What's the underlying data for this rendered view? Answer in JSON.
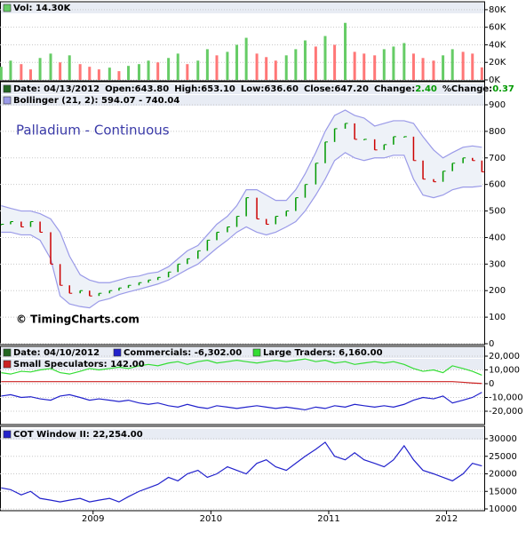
{
  "chart_data": [
    {
      "type": "bar",
      "title": "Vol: 14.30K",
      "title_color": "#66cc66",
      "x": [
        2008.22,
        2008.3,
        2008.39,
        2008.47,
        2008.55,
        2008.64,
        2008.72,
        2008.8,
        2008.89,
        2008.97,
        2009.05,
        2009.14,
        2009.22,
        2009.3,
        2009.39,
        2009.47,
        2009.55,
        2009.64,
        2009.72,
        2009.8,
        2009.89,
        2009.97,
        2010.05,
        2010.14,
        2010.22,
        2010.3,
        2010.39,
        2010.47,
        2010.55,
        2010.64,
        2010.72,
        2010.8,
        2010.89,
        2010.97,
        2011.05,
        2011.14,
        2011.22,
        2011.3,
        2011.39,
        2011.47,
        2011.55,
        2011.64,
        2011.72,
        2011.8,
        2011.89,
        2011.97,
        2012.05,
        2012.14,
        2012.22,
        2012.3
      ],
      "values": [
        15,
        22,
        18,
        12,
        25,
        30,
        20,
        28,
        18,
        15,
        12,
        14,
        10,
        16,
        18,
        22,
        20,
        25,
        30,
        18,
        22,
        35,
        28,
        32,
        40,
        48,
        30,
        26,
        22,
        28,
        35,
        45,
        38,
        50,
        40,
        65,
        32,
        30,
        28,
        35,
        38,
        42,
        30,
        25,
        22,
        28,
        35,
        32,
        30,
        14.3
      ],
      "color_up": "#66cc66",
      "color_down": "#ff7777",
      "xlim": [
        2008.21,
        2012.32
      ],
      "ylim": [
        0,
        88
      ],
      "yticks": [
        {
          "value": 0,
          "label": "0K"
        },
        {
          "value": 20,
          "label": "20K"
        },
        {
          "value": 40,
          "label": "40K"
        },
        {
          "value": 60,
          "label": "60K"
        },
        {
          "value": 80,
          "label": "80K"
        }
      ],
      "grid": true
    },
    {
      "type": "ohlc",
      "info": [
        {
          "label": "Date: ",
          "value": "04/13/2012"
        },
        {
          "label": "Open:",
          "value": "643.80"
        },
        {
          "label": "High:",
          "value": "653.10"
        },
        {
          "label": "Low:",
          "value": "636.60"
        },
        {
          "label": "Close:",
          "value": "647.20"
        },
        {
          "label": "Change:",
          "value": "2.40",
          "color": "#009900"
        },
        {
          "label": "%Change:",
          "value": "0.37",
          "color": "#009900"
        }
      ],
      "info_color": "#226622",
      "band_label": "Bollinger (21, 2): 594.07 - 740.04",
      "band_color": "#9a9ae8",
      "band_fill": "#eef2f8",
      "title": "Palladium - Continuous",
      "annotation": "© TimingCharts.com",
      "x": [
        2008.22,
        2008.3,
        2008.39,
        2008.47,
        2008.55,
        2008.64,
        2008.72,
        2008.8,
        2008.89,
        2008.97,
        2009.05,
        2009.14,
        2009.22,
        2009.3,
        2009.39,
        2009.47,
        2009.55,
        2009.64,
        2009.72,
        2009.8,
        2009.89,
        2009.97,
        2010.05,
        2010.14,
        2010.22,
        2010.3,
        2010.39,
        2010.47,
        2010.55,
        2010.64,
        2010.72,
        2010.8,
        2010.89,
        2010.97,
        2011.05,
        2011.14,
        2011.22,
        2011.3,
        2011.39,
        2011.47,
        2011.55,
        2011.64,
        2011.72,
        2011.8,
        2011.89,
        2011.97,
        2012.05,
        2012.14,
        2012.22,
        2012.3
      ],
      "values": [
        450,
        460,
        440,
        460,
        420,
        300,
        220,
        190,
        200,
        180,
        190,
        200,
        210,
        220,
        230,
        240,
        250,
        270,
        300,
        320,
        350,
        390,
        420,
        440,
        480,
        550,
        470,
        450,
        480,
        500,
        550,
        600,
        680,
        760,
        810,
        830,
        770,
        770,
        730,
        750,
        780,
        780,
        690,
        620,
        610,
        650,
        680,
        700,
        690,
        647.2
      ],
      "upper": [
        520,
        510,
        500,
        500,
        490,
        470,
        420,
        330,
        260,
        240,
        230,
        230,
        240,
        250,
        255,
        265,
        270,
        290,
        320,
        350,
        370,
        410,
        450,
        480,
        520,
        580,
        580,
        560,
        540,
        540,
        580,
        640,
        720,
        800,
        860,
        880,
        860,
        850,
        820,
        830,
        840,
        840,
        830,
        780,
        730,
        700,
        720,
        740,
        745,
        740.04
      ],
      "lower": [
        420,
        420,
        410,
        410,
        390,
        320,
        180,
        150,
        140,
        135,
        160,
        170,
        185,
        195,
        205,
        215,
        225,
        240,
        260,
        280,
        300,
        330,
        360,
        390,
        420,
        440,
        420,
        410,
        420,
        440,
        460,
        500,
        560,
        620,
        690,
        720,
        700,
        690,
        700,
        700,
        710,
        710,
        620,
        560,
        550,
        560,
        580,
        590,
        590,
        594.07
      ],
      "color_up": "#009900",
      "color_down": "#cc0000",
      "xlim": [
        2008.21,
        2012.32
      ],
      "ylim": [
        0,
        900
      ],
      "yticks": [
        0,
        100,
        200,
        300,
        400,
        500,
        600,
        700,
        800,
        900
      ],
      "grid": true
    },
    {
      "type": "line",
      "title": "Date: 04/10/2012",
      "x": [
        2008.22,
        2008.3,
        2008.39,
        2008.47,
        2008.55,
        2008.64,
        2008.72,
        2008.8,
        2008.89,
        2008.97,
        2009.05,
        2009.14,
        2009.22,
        2009.3,
        2009.39,
        2009.47,
        2009.55,
        2009.64,
        2009.72,
        2009.8,
        2009.89,
        2009.97,
        2010.05,
        2010.14,
        2010.22,
        2010.3,
        2010.39,
        2010.47,
        2010.55,
        2010.64,
        2010.72,
        2010.8,
        2010.89,
        2010.97,
        2011.05,
        2011.14,
        2011.22,
        2011.3,
        2011.39,
        2011.47,
        2011.55,
        2011.64,
        2011.72,
        2011.8,
        2011.89,
        2011.97,
        2012.05,
        2012.14,
        2012.22,
        2012.3
      ],
      "series": [
        {
          "name": "Commercials: -6,302.00",
          "color": "#2222cc",
          "values": [
            -9000,
            -8000,
            -10000,
            -9500,
            -11000,
            -12000,
            -9000,
            -8000,
            -10000,
            -12000,
            -11000,
            -12000,
            -13000,
            -12000,
            -14000,
            -15000,
            -14000,
            -16000,
            -17000,
            -15000,
            -17000,
            -18000,
            -16000,
            -17000,
            -18000,
            -17000,
            -16000,
            -17000,
            -18000,
            -17000,
            -18000,
            -19000,
            -17000,
            -18000,
            -16000,
            -17000,
            -15000,
            -16000,
            -17000,
            -16000,
            -17000,
            -15000,
            -12000,
            -10000,
            -11000,
            -9000,
            -14000,
            -12000,
            -10000,
            -6302
          ]
        },
        {
          "name": "Large Traders: 6,160.00",
          "color": "#33dd33",
          "values": [
            8000,
            7000,
            9000,
            8500,
            10000,
            11000,
            8000,
            7000,
            9000,
            11000,
            10000,
            11000,
            12000,
            11000,
            13000,
            14000,
            13000,
            15000,
            16000,
            14000,
            16000,
            17000,
            15000,
            16000,
            17000,
            16000,
            15000,
            16000,
            17000,
            16000,
            17000,
            18000,
            16000,
            17000,
            15000,
            16000,
            14000,
            15000,
            16000,
            15000,
            16000,
            14000,
            11000,
            9000,
            10000,
            8000,
            13000,
            11000,
            9000,
            6160
          ]
        },
        {
          "name": "Small Speculators: 142.00",
          "color": "#cc2222",
          "values": [
            1500,
            1500,
            1500,
            1500,
            1500,
            1500,
            1500,
            1500,
            1500,
            1500,
            1500,
            1500,
            1500,
            1500,
            1500,
            1500,
            1500,
            1500,
            1500,
            1500,
            1500,
            1500,
            1500,
            1500,
            1500,
            1500,
            1500,
            1500,
            1500,
            1500,
            1500,
            1500,
            1500,
            1500,
            1500,
            1500,
            1500,
            1500,
            1500,
            1500,
            1500,
            1500,
            1500,
            1500,
            1500,
            1500,
            1500,
            1000,
            500,
            142
          ]
        }
      ],
      "xlim": [
        2008.21,
        2012.32
      ],
      "ylim": [
        -20000,
        20000
      ],
      "yticks": [
        {
          "value": -20000,
          "label": "-20,000"
        },
        {
          "value": -10000,
          "label": "-10,000"
        },
        0,
        {
          "value": 10000,
          "label": "10,000"
        },
        {
          "value": 20000,
          "label": "20,000"
        }
      ],
      "grid": true
    },
    {
      "type": "line",
      "x": [
        2008.22,
        2008.3,
        2008.39,
        2008.47,
        2008.55,
        2008.64,
        2008.72,
        2008.8,
        2008.89,
        2008.97,
        2009.05,
        2009.14,
        2009.22,
        2009.3,
        2009.39,
        2009.47,
        2009.55,
        2009.64,
        2009.72,
        2009.8,
        2009.89,
        2009.97,
        2010.05,
        2010.14,
        2010.22,
        2010.3,
        2010.39,
        2010.47,
        2010.55,
        2010.64,
        2010.72,
        2010.8,
        2010.89,
        2010.97,
        2011.05,
        2011.14,
        2011.22,
        2011.3,
        2011.39,
        2011.47,
        2011.55,
        2011.64,
        2011.72,
        2011.8,
        2011.89,
        2011.97,
        2012.05,
        2012.14,
        2012.22,
        2012.3
      ],
      "series": [
        {
          "name": "COT Window II: 22,254.00",
          "color": "#2222cc",
          "values": [
            16000,
            15500,
            14000,
            15000,
            13000,
            12500,
            12000,
            12500,
            13000,
            12000,
            12500,
            13000,
            12000,
            13500,
            15000,
            16000,
            17000,
            19000,
            18000,
            20000,
            21000,
            19000,
            20000,
            22000,
            21000,
            20000,
            23000,
            24000,
            22000,
            21000,
            23000,
            25000,
            27000,
            29000,
            25000,
            24000,
            26000,
            24000,
            23000,
            22000,
            24000,
            28000,
            24000,
            21000,
            20000,
            19000,
            18000,
            20000,
            23000,
            22254
          ]
        }
      ],
      "xlim": [
        2008.21,
        2012.32
      ],
      "ylim": [
        10000,
        30000
      ],
      "yticks": [
        10000,
        15000,
        20000,
        25000,
        30000
      ],
      "xticks": [
        2009,
        2010,
        2011,
        2012
      ],
      "grid": true
    }
  ]
}
